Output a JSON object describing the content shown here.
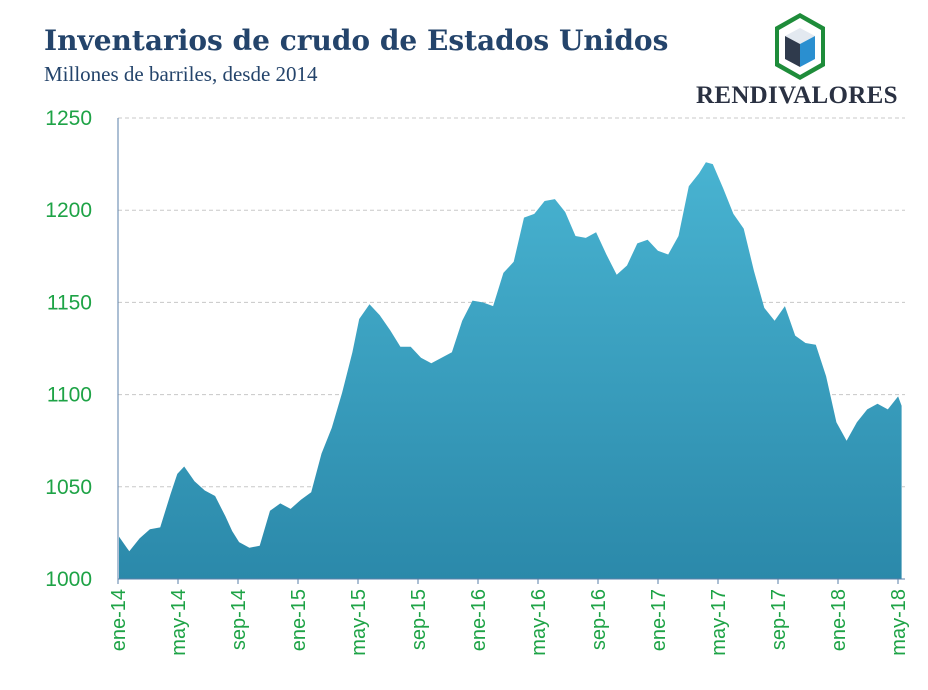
{
  "header": {
    "title": "Inventarios de crudo de Estados Unidos",
    "subtitle": "Millones de barriles, desde 2014",
    "brand": "RENDIVALORES",
    "logo_icon": "cube-hexagon-logo-icon"
  },
  "colors": {
    "title": "#24446b",
    "area_top": "#48b3d1",
    "area_bottom": "#2b89aa",
    "axis_labels": "#1ea346",
    "grid": "#c8c8c8",
    "logo_green": "#1e8c3a",
    "logo_blue": "#2a8fd0",
    "logo_dark": "#2f3a4c"
  },
  "chart_data": {
    "type": "area",
    "title": "Inventarios de crudo de Estados Unidos",
    "subtitle": "Millones de barriles, desde 2014",
    "xlabel": "",
    "ylabel": "",
    "ylim": [
      1000,
      1250
    ],
    "yticks": [
      1000,
      1050,
      1100,
      1150,
      1200,
      1250
    ],
    "grid": true,
    "x_tick_labels": [
      "ene-14",
      "may-14",
      "sep-14",
      "ene-15",
      "may-15",
      "sep-15",
      "ene-16",
      "may-16",
      "sep-16",
      "ene-17",
      "may-17",
      "sep-17",
      "ene-18",
      "may-18"
    ],
    "x": [
      "2014-01-03",
      "2014-01-24",
      "2014-02-14",
      "2014-03-07",
      "2014-03-28",
      "2014-04-18",
      "2014-05-02",
      "2014-05-16",
      "2014-06-06",
      "2014-06-27",
      "2014-07-18",
      "2014-08-08",
      "2014-08-22",
      "2014-09-05",
      "2014-09-26",
      "2014-10-17",
      "2014-11-07",
      "2014-11-28",
      "2014-12-19",
      "2015-01-09",
      "2015-01-30",
      "2015-02-20",
      "2015-03-13",
      "2015-04-03",
      "2015-04-24",
      "2015-05-08",
      "2015-05-29",
      "2015-06-19",
      "2015-07-10",
      "2015-07-31",
      "2015-08-21",
      "2015-09-11",
      "2015-10-02",
      "2015-10-23",
      "2015-11-13",
      "2015-12-04",
      "2015-12-25",
      "2016-01-15",
      "2016-02-05",
      "2016-02-26",
      "2016-03-18",
      "2016-04-08",
      "2016-04-29",
      "2016-05-20",
      "2016-06-10",
      "2016-07-01",
      "2016-07-22",
      "2016-08-12",
      "2016-09-02",
      "2016-09-23",
      "2016-10-14",
      "2016-11-04",
      "2016-11-25",
      "2016-12-16",
      "2017-01-06",
      "2017-01-27",
      "2017-02-17",
      "2017-03-10",
      "2017-03-31",
      "2017-04-14",
      "2017-04-28",
      "2017-05-19",
      "2017-06-09",
      "2017-06-30",
      "2017-07-21",
      "2017-08-11",
      "2017-09-01",
      "2017-09-22",
      "2017-10-13",
      "2017-11-03",
      "2017-11-24",
      "2017-12-15",
      "2018-01-05",
      "2018-01-26",
      "2018-02-16",
      "2018-03-09",
      "2018-03-30",
      "2018-04-20",
      "2018-05-11",
      "2018-05-18"
    ],
    "series": [
      {
        "values": [
          1023,
          1015,
          1022,
          1027,
          1028,
          1046,
          1057,
          1061,
          1053,
          1048,
          1045,
          1034,
          1026,
          1020,
          1017,
          1018,
          1037,
          1041,
          1038,
          1043,
          1047,
          1068,
          1082,
          1101,
          1123,
          1141,
          1149,
          1143,
          1135,
          1126,
          1126,
          1120,
          1117,
          1120,
          1123,
          1140,
          1151,
          1150,
          1148,
          1166,
          1172,
          1196,
          1198,
          1205,
          1206,
          1199,
          1186,
          1185,
          1188,
          1176,
          1165,
          1170,
          1182,
          1184,
          1178,
          1176,
          1186,
          1213,
          1220,
          1226,
          1225,
          1212,
          1198,
          1190,
          1167,
          1147,
          1140,
          1148,
          1132,
          1128,
          1127,
          1110,
          1085,
          1075,
          1085,
          1092,
          1095,
          1092,
          1099,
          1094
        ]
      }
    ]
  }
}
